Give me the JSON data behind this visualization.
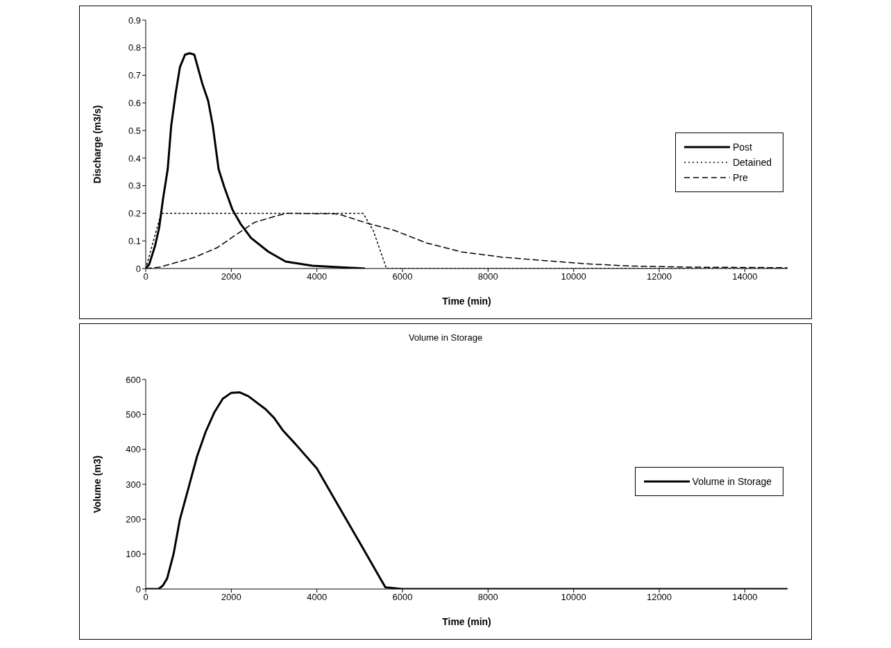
{
  "chart_data": [
    {
      "type": "line",
      "xlabel": "Time (min)",
      "ylabel": "Discharge (m3/s)",
      "xlim": [
        0,
        15000
      ],
      "xticks": [
        0,
        2000,
        4000,
        6000,
        8000,
        10000,
        12000,
        14000
      ],
      "ylim": [
        0,
        0.9
      ],
      "yticks": [
        0,
        0.1,
        0.2,
        0.3,
        0.4,
        0.5,
        0.6,
        0.7,
        0.8,
        0.9
      ],
      "grid": false,
      "legend": "right",
      "marker": "none",
      "series": [
        {
          "name": "Post",
          "color": "#000000",
          "line_style": "solid",
          "x": [
            0,
            81,
            216,
            314,
            405,
            514,
            595,
            703,
            800,
            919,
            1027,
            1135,
            1324,
            1459,
            1568,
            1703,
            1838,
            2027,
            2216,
            2459,
            2865,
            3270,
            3892,
            5108
          ],
          "values": [
            0,
            0.015,
            0.081,
            0.147,
            0.253,
            0.36,
            0.517,
            0.638,
            0.73,
            0.775,
            0.78,
            0.775,
            0.669,
            0.608,
            0.517,
            0.36,
            0.294,
            0.213,
            0.162,
            0.111,
            0.061,
            0.025,
            0.01,
            0
          ]
        },
        {
          "name": "Detained",
          "color": "#000000",
          "line_style": "dotted",
          "x": [
            0,
            360,
            5079,
            5322,
            5625,
            15000
          ],
          "values": [
            0,
            0.2,
            0.2,
            0.136,
            0,
            0
          ]
        },
        {
          "name": "Pre",
          "color": "#000000",
          "line_style": "dashed",
          "x": [
            0,
            324,
            1135,
            1676,
            2108,
            2541,
            3081,
            3297,
            4432,
            4574,
            5219,
            5794,
            6575,
            7389,
            8333,
            9287,
            10300,
            11321,
            12677,
            14981
          ],
          "values": [
            0,
            0.005,
            0.04,
            0.076,
            0.122,
            0.167,
            0.192,
            0.2,
            0.198,
            0.194,
            0.162,
            0.139,
            0.092,
            0.06,
            0.041,
            0.029,
            0.017,
            0.009,
            0.005,
            0.003
          ]
        }
      ]
    },
    {
      "type": "line",
      "title": "Volume in Storage",
      "xlabel": "Time (min)",
      "ylabel": "Volume (m3)",
      "xlim": [
        0,
        15000
      ],
      "xticks": [
        0,
        2000,
        4000,
        6000,
        8000,
        10000,
        12000,
        14000
      ],
      "ylim": [
        0,
        600
      ],
      "yticks": [
        0,
        100,
        200,
        300,
        400,
        500,
        600
      ],
      "grid": false,
      "legend": "right",
      "marker": "none",
      "series": [
        {
          "name": "Volume in Storage",
          "color": "#000000",
          "line_style": "solid",
          "x": [
            0,
            300,
            400,
            500,
            650,
            800,
            1000,
            1200,
            1400,
            1600,
            1800,
            2000,
            2200,
            2400,
            2800,
            3000,
            3200,
            3500,
            4000,
            4500,
            5000,
            5600,
            6000,
            15000
          ],
          "values": [
            0,
            0,
            10,
            30,
            100,
            200,
            290,
            380,
            450,
            505,
            545,
            562,
            563,
            552,
            515,
            490,
            455,
            415,
            345,
            239,
            133,
            5,
            0,
            0
          ]
        }
      ]
    }
  ]
}
